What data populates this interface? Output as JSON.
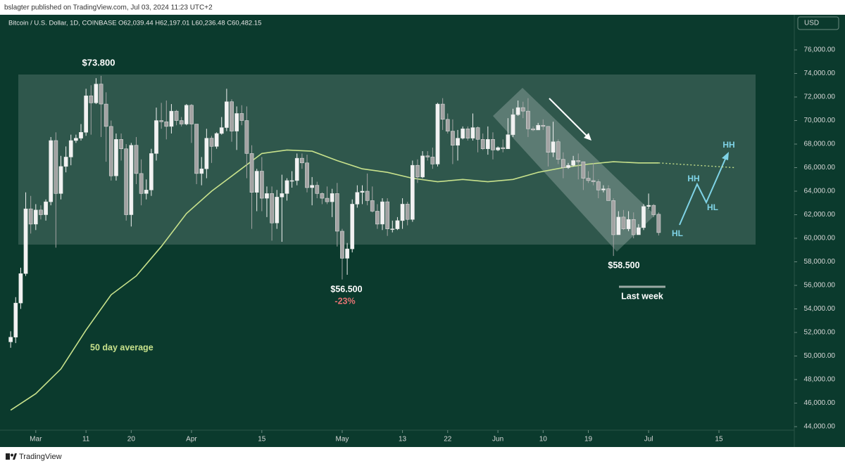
{
  "header": "bslagter published on TradingView.com, Jul 03, 2024 11:23 UTC+2",
  "footer": "TradingView",
  "chart_data": {
    "type": "candlestick",
    "symbol": "Bitcoin / U.S. Dollar, 1D, COINBASE",
    "ohlc_legend": "O62,039.44  H62,197.01  L60,236.48  C60,482.15",
    "currency": "USD",
    "up_color": "#f2f2f2",
    "down_color": "#a3a3a3",
    "xlim": [
      "2024-02-24",
      "2024-07-30"
    ],
    "xticks": [
      {
        "value": "2024-03-01",
        "label": "Mar"
      },
      {
        "value": "2024-03-11",
        "label": "11"
      },
      {
        "value": "2024-03-20",
        "label": "20"
      },
      {
        "value": "2024-04-01",
        "label": "Apr"
      },
      {
        "value": "2024-04-15",
        "label": "15"
      },
      {
        "value": "2024-05-01",
        "label": "May"
      },
      {
        "value": "2024-05-13",
        "label": "13"
      },
      {
        "value": "2024-05-22",
        "label": "22"
      },
      {
        "value": "2024-06-01",
        "label": "Jun"
      },
      {
        "value": "2024-06-10",
        "label": "10"
      },
      {
        "value": "2024-06-19",
        "label": "19"
      },
      {
        "value": "2024-07-01",
        "label": "Jul"
      },
      {
        "value": "2024-07-15",
        "label": "15"
      }
    ],
    "ylim": [
      42270,
      78925
    ],
    "yticks": [
      {
        "value": 44000,
        "label": "44,000.00"
      },
      {
        "value": 46000,
        "label": "46,000.00"
      },
      {
        "value": 48000,
        "label": "48,000.00"
      },
      {
        "value": 50000,
        "label": "50,000.00"
      },
      {
        "value": 52000,
        "label": "52,000.00"
      },
      {
        "value": 54000,
        "label": "54,000.00"
      },
      {
        "value": 56000,
        "label": "56,000.00"
      },
      {
        "value": 58000,
        "label": "58,000.00"
      },
      {
        "value": 60000,
        "label": "60,000.00"
      },
      {
        "value": 62000,
        "label": "62,000.00"
      },
      {
        "value": 64000,
        "label": "64,000.00"
      },
      {
        "value": 66000,
        "label": "66,000.00"
      },
      {
        "value": 68000,
        "label": "68,000.00"
      },
      {
        "value": 70000,
        "label": "70,000.00"
      },
      {
        "value": 72000,
        "label": "72,000.00"
      },
      {
        "value": 74000,
        "label": "74,000.00"
      },
      {
        "value": 76000,
        "label": "76,000.00"
      }
    ],
    "x": [
      "2024-02-25",
      "2024-02-26",
      "2024-02-27",
      "2024-02-28",
      "2024-02-29",
      "2024-03-01",
      "2024-03-02",
      "2024-03-03",
      "2024-03-04",
      "2024-03-05",
      "2024-03-06",
      "2024-03-07",
      "2024-03-08",
      "2024-03-09",
      "2024-03-10",
      "2024-03-11",
      "2024-03-12",
      "2024-03-13",
      "2024-03-14",
      "2024-03-15",
      "2024-03-16",
      "2024-03-17",
      "2024-03-18",
      "2024-03-19",
      "2024-03-20",
      "2024-03-21",
      "2024-03-22",
      "2024-03-23",
      "2024-03-24",
      "2024-03-25",
      "2024-03-26",
      "2024-03-27",
      "2024-03-28",
      "2024-03-29",
      "2024-03-30",
      "2024-03-31",
      "2024-04-01",
      "2024-04-02",
      "2024-04-03",
      "2024-04-04",
      "2024-04-05",
      "2024-04-06",
      "2024-04-07",
      "2024-04-08",
      "2024-04-09",
      "2024-04-10",
      "2024-04-11",
      "2024-04-12",
      "2024-04-13",
      "2024-04-14",
      "2024-04-15",
      "2024-04-16",
      "2024-04-17",
      "2024-04-18",
      "2024-04-19",
      "2024-04-20",
      "2024-04-21",
      "2024-04-22",
      "2024-04-23",
      "2024-04-24",
      "2024-04-25",
      "2024-04-26",
      "2024-04-27",
      "2024-04-28",
      "2024-04-29",
      "2024-04-30",
      "2024-05-01",
      "2024-05-02",
      "2024-05-03",
      "2024-05-04",
      "2024-05-05",
      "2024-05-06",
      "2024-05-07",
      "2024-05-08",
      "2024-05-09",
      "2024-05-10",
      "2024-05-11",
      "2024-05-12",
      "2024-05-13",
      "2024-05-14",
      "2024-05-15",
      "2024-05-16",
      "2024-05-17",
      "2024-05-18",
      "2024-05-19",
      "2024-05-20",
      "2024-05-21",
      "2024-05-22",
      "2024-05-23",
      "2024-05-24",
      "2024-05-25",
      "2024-05-26",
      "2024-05-27",
      "2024-05-28",
      "2024-05-29",
      "2024-05-30",
      "2024-05-31",
      "2024-06-01",
      "2024-06-02",
      "2024-06-03",
      "2024-06-04",
      "2024-06-05",
      "2024-06-06",
      "2024-06-07",
      "2024-06-08",
      "2024-06-09",
      "2024-06-10",
      "2024-06-11",
      "2024-06-12",
      "2024-06-13",
      "2024-06-14",
      "2024-06-15",
      "2024-06-16",
      "2024-06-17",
      "2024-06-18",
      "2024-06-19",
      "2024-06-20",
      "2024-06-21",
      "2024-06-22",
      "2024-06-23",
      "2024-06-24",
      "2024-06-25",
      "2024-06-26",
      "2024-06-27",
      "2024-06-28",
      "2024-06-29",
      "2024-06-30",
      "2024-07-01",
      "2024-07-02",
      "2024-07-03"
    ],
    "open": [
      51200,
      51600,
      54500,
      57000,
      62500,
      61200,
      62400,
      62000,
      63100,
      68300,
      63800,
      66100,
      66900,
      68300,
      68500,
      69000,
      72100,
      71500,
      73100,
      71400,
      69500,
      65300,
      68400,
      67600,
      62000,
      67900,
      65500,
      63800,
      64100,
      67200,
      70000,
      69900,
      69500,
      70800,
      70000,
      69700,
      71300,
      69700,
      65500,
      65900,
      68500,
      67800,
      68900,
      69400,
      71600,
      69100,
      70600,
      70000,
      67200,
      63900,
      65700,
      63400,
      63800,
      61300,
      63500,
      63800,
      64900,
      64900,
      66800,
      66400,
      64300,
      64500,
      63800,
      63400,
      63100,
      63800,
      60600,
      58300,
      59100,
      62900,
      63900,
      64000,
      63200,
      62300,
      61200,
      63100,
      60800,
      60800,
      61500,
      62900,
      61600,
      66200,
      65200,
      67000,
      66900,
      66300,
      71400,
      70100,
      69100,
      67900,
      68500,
      69300,
      68500,
      69400,
      68400,
      67600,
      68400,
      67500,
      67700,
      67600,
      68800,
      70500,
      71100,
      70800,
      69300,
      69200,
      69600,
      69500,
      67300,
      68200,
      66700,
      66000,
      66200,
      66600,
      66500,
      65100,
      64900,
      64800,
      64100,
      64200,
      63200,
      60300,
      61800,
      60800,
      61600,
      60300,
      60900,
      62700,
      62800,
      62039.44
    ],
    "high": [
      52100,
      55000,
      57500,
      63900,
      63600,
      62900,
      62800,
      63300,
      68600,
      69000,
      67000,
      67800,
      68800,
      68800,
      69700,
      72700,
      73000,
      73600,
      73800,
      72400,
      70000,
      68900,
      68900,
      68000,
      68100,
      68600,
      66700,
      65000,
      67600,
      71100,
      71500,
      71700,
      71400,
      70900,
      70300,
      71400,
      71400,
      69700,
      66900,
      69300,
      68700,
      69000,
      70300,
      72700,
      71800,
      71200,
      71300,
      71200,
      67900,
      65900,
      66900,
      64400,
      64400,
      64100,
      65400,
      65100,
      65700,
      67200,
      67200,
      67100,
      65200,
      64800,
      63900,
      64400,
      64200,
      64700,
      60800,
      59600,
      63300,
      64500,
      64500,
      65500,
      64400,
      62900,
      63400,
      63400,
      61500,
      61800,
      63400,
      63100,
      66600,
      66700,
      67400,
      67400,
      67700,
      71500,
      71900,
      70600,
      70100,
      69200,
      69500,
      69500,
      70600,
      69500,
      68900,
      69500,
      69000,
      67800,
      68400,
      70200,
      71000,
      71700,
      71600,
      71900,
      69500,
      69800,
      70100,
      69500,
      69900,
      68400,
      67300,
      66400,
      67000,
      67200,
      66500,
      65700,
      66400,
      65000,
      64500,
      64500,
      63400,
      62300,
      62400,
      62300,
      62200,
      61200,
      62900,
      63800,
      62900,
      62197.01
    ],
    "low": [
      50700,
      51100,
      54000,
      56800,
      60400,
      60700,
      61600,
      61500,
      62800,
      59200,
      63300,
      65600,
      66200,
      68100,
      68300,
      68700,
      68800,
      71400,
      68600,
      66500,
      64900,
      64900,
      66600,
      61500,
      61000,
      64600,
      62800,
      63300,
      63600,
      66600,
      69300,
      68400,
      68900,
      69600,
      69500,
      69600,
      68100,
      64600,
      64500,
      65100,
      66400,
      67600,
      68800,
      69100,
      68200,
      67500,
      69600,
      65100,
      60800,
      62300,
      62300,
      61800,
      59800,
      60800,
      59700,
      63200,
      64300,
      64500,
      65900,
      63900,
      62800,
      63400,
      62900,
      62900,
      61800,
      59300,
      56500,
      56900,
      58800,
      62600,
      62900,
      62800,
      62200,
      60800,
      60700,
      60200,
      60500,
      60700,
      60800,
      61100,
      61400,
      64700,
      65100,
      66600,
      65900,
      66100,
      69200,
      68900,
      66300,
      66600,
      68400,
      68300,
      68300,
      67300,
      67500,
      67100,
      66700,
      67400,
      67300,
      67600,
      68600,
      70400,
      70200,
      68600,
      69100,
      69200,
      69200,
      66100,
      66900,
      66300,
      65100,
      65900,
      66100,
      65000,
      64100,
      64700,
      64500,
      63400,
      63900,
      63200,
      58500,
      60300,
      60700,
      60600,
      60000,
      60300,
      60700,
      62500,
      61800,
      60236.48
    ],
    "close": [
      51600,
      54500,
      57000,
      62500,
      61200,
      62400,
      62000,
      63100,
      68300,
      63800,
      66100,
      66900,
      68300,
      68500,
      69000,
      72100,
      71500,
      73100,
      71400,
      69500,
      65300,
      68400,
      67600,
      62000,
      67900,
      65500,
      63800,
      64100,
      67200,
      70000,
      69900,
      69500,
      70800,
      70000,
      69700,
      71300,
      69700,
      65500,
      65900,
      68500,
      67800,
      68900,
      69400,
      71600,
      69100,
      70600,
      70000,
      67200,
      63900,
      65700,
      63400,
      63800,
      61300,
      63500,
      63800,
      64900,
      64900,
      66800,
      66400,
      64300,
      64500,
      63800,
      63400,
      63100,
      63800,
      60600,
      58300,
      59100,
      62900,
      63900,
      64000,
      63200,
      62300,
      61200,
      63100,
      60800,
      60800,
      61500,
      62900,
      61600,
      66200,
      65200,
      67000,
      66900,
      66300,
      71400,
      70100,
      69100,
      67900,
      68500,
      69300,
      68500,
      69400,
      68400,
      67600,
      68400,
      67500,
      67700,
      67600,
      68800,
      70500,
      71100,
      70800,
      69300,
      69200,
      69600,
      69500,
      67300,
      68200,
      66700,
      66000,
      66200,
      66600,
      66500,
      65100,
      64900,
      64800,
      64100,
      64200,
      63200,
      60300,
      61800,
      60800,
      61600,
      60300,
      60900,
      62700,
      62800,
      62000,
      60482.15
    ],
    "moving_average": {
      "name": "50 day average",
      "color": "#c8e28c",
      "x": [
        "2024-02-25",
        "2024-03-01",
        "2024-03-06",
        "2024-03-11",
        "2024-03-16",
        "2024-03-21",
        "2024-03-26",
        "2024-03-31",
        "2024-04-05",
        "2024-04-10",
        "2024-04-15",
        "2024-04-20",
        "2024-04-25",
        "2024-04-30",
        "2024-05-05",
        "2024-05-10",
        "2024-05-15",
        "2024-05-20",
        "2024-05-25",
        "2024-05-30",
        "2024-06-04",
        "2024-06-09",
        "2024-06-14",
        "2024-06-19",
        "2024-06-24",
        "2024-06-29",
        "2024-07-03"
      ],
      "values": [
        45400,
        46800,
        48900,
        52200,
        55200,
        56800,
        59300,
        62100,
        64000,
        65600,
        67200,
        67500,
        67400,
        66600,
        65900,
        65600,
        65100,
        64800,
        65000,
        64800,
        65000,
        65600,
        66000,
        66300,
        66500,
        66400,
        66400
      ]
    },
    "projection": {
      "x": [
        "2024-07-03",
        "2024-07-18"
      ],
      "values": [
        66400,
        66000
      ]
    },
    "annotations": [
      "$73.800",
      "$56.500",
      "-23%",
      "$58.500",
      "Last week",
      "HH",
      "HH",
      "HL",
      "HL"
    ]
  }
}
